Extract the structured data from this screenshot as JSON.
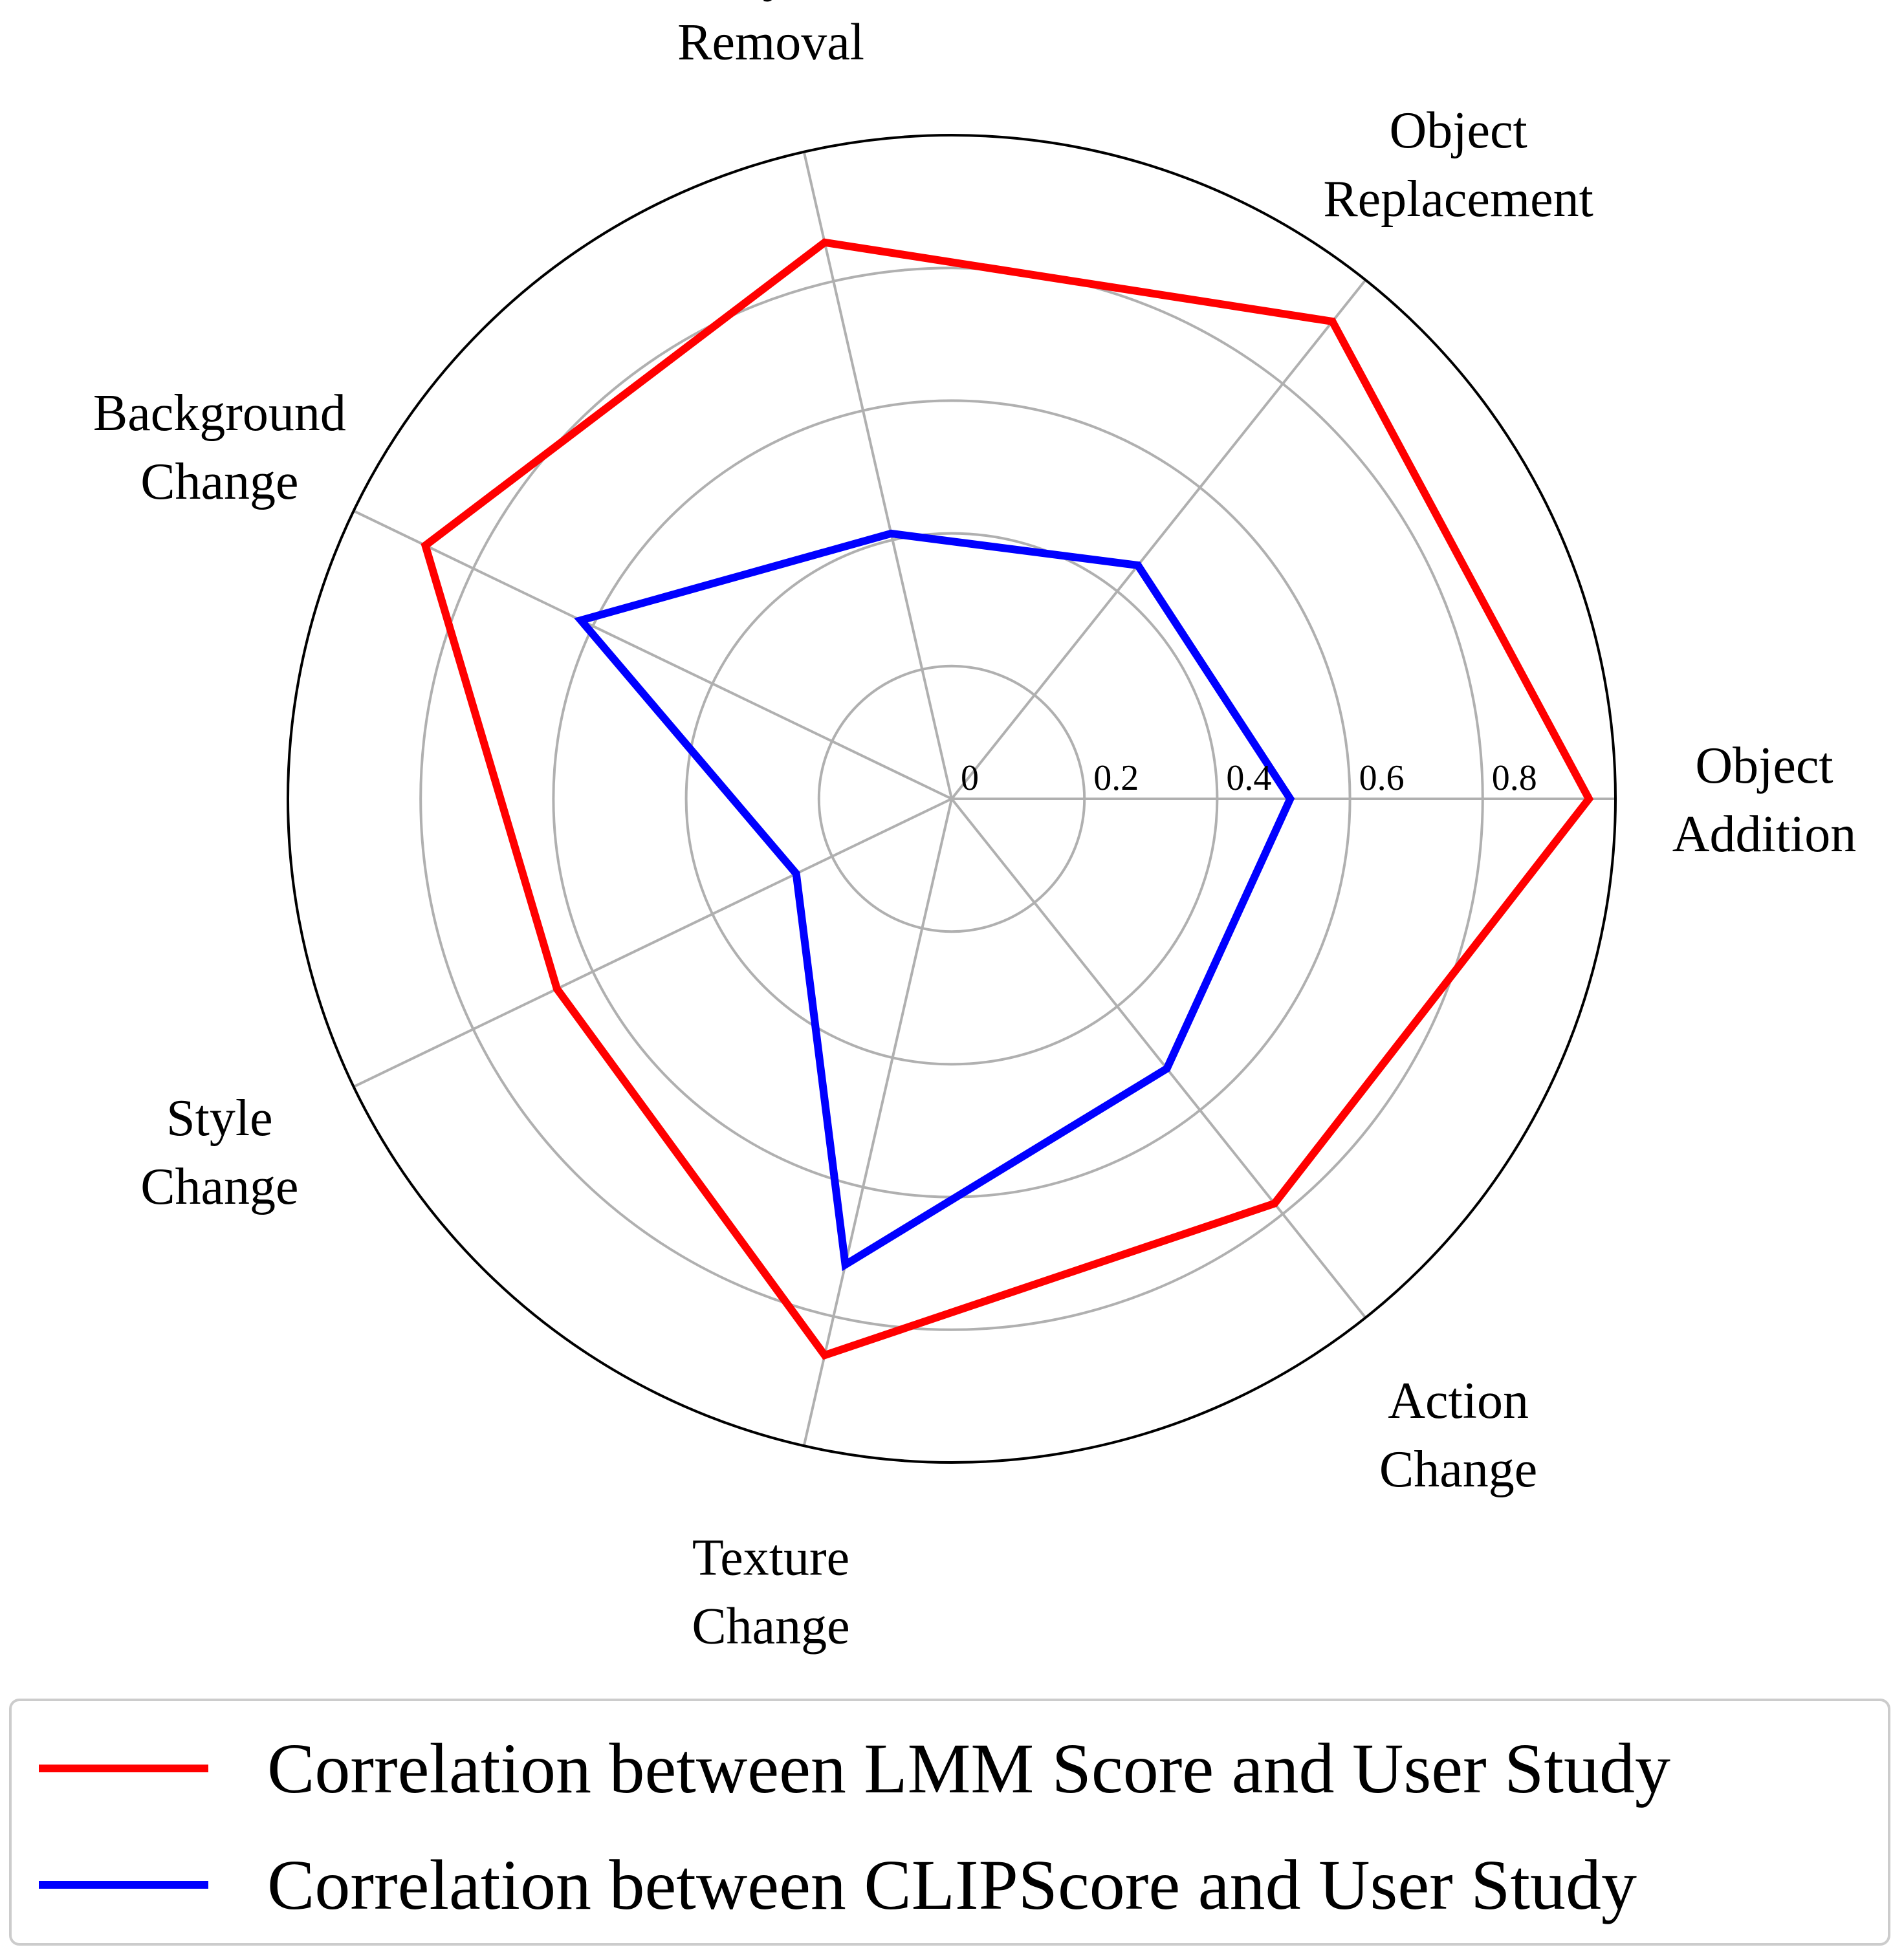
{
  "chart_data": {
    "type": "radar",
    "categories": [
      [
        "Object",
        "Addition"
      ],
      [
        "Object",
        "Replacement"
      ],
      [
        "Object",
        "Removal"
      ],
      [
        "Background",
        "Change"
      ],
      [
        "Style",
        "Change"
      ],
      [
        "Texture",
        "Change"
      ],
      [
        "Action",
        "Change"
      ]
    ],
    "radial_ticks": [
      "0",
      "0.2",
      "0.4",
      "0.6",
      "0.8"
    ],
    "radial_tick_values": [
      0,
      0.2,
      0.4,
      0.6,
      0.8
    ],
    "rlim": [
      0,
      1.0
    ],
    "grid": true,
    "series": [
      {
        "name": "Correlation between LMM Score and User Study",
        "color": "#ff0000",
        "values": [
          0.96,
          0.92,
          0.86,
          0.88,
          0.66,
          0.86,
          0.78
        ]
      },
      {
        "name": "Correlation between CLIPScore and User Study",
        "color": "#0000ff",
        "values": [
          0.51,
          0.45,
          0.41,
          0.62,
          0.26,
          0.72,
          0.52
        ]
      }
    ],
    "legend_position": "bottom"
  }
}
